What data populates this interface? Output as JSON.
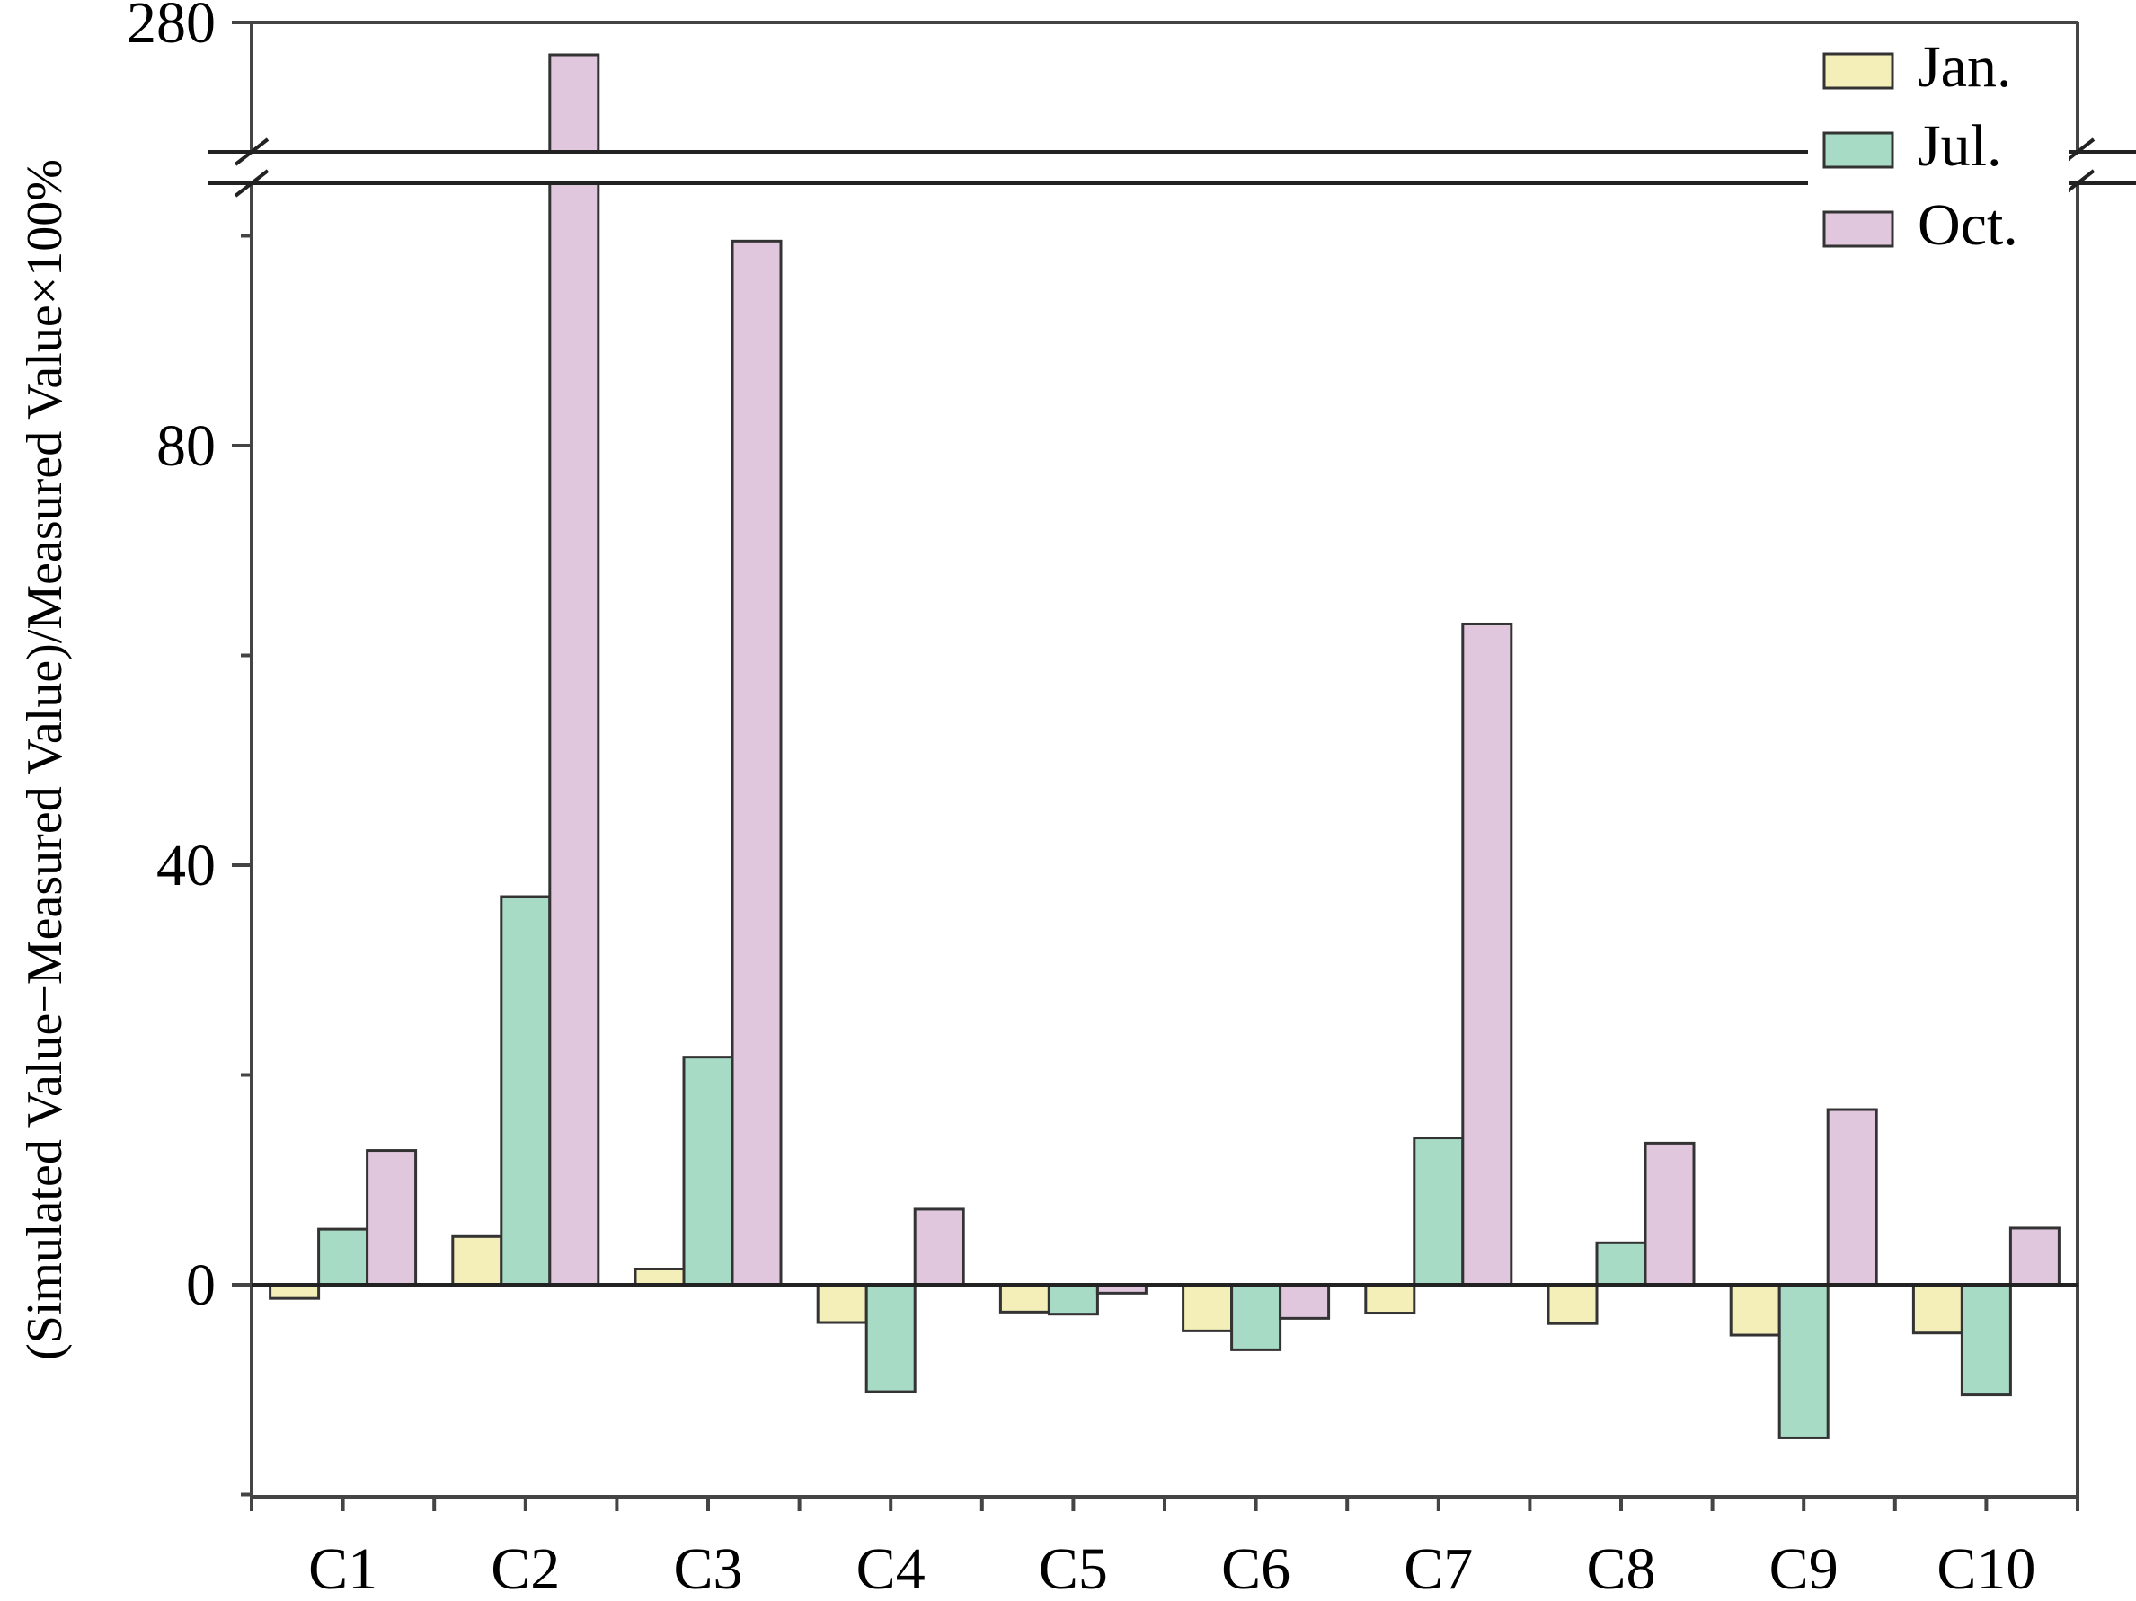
{
  "chart_data": {
    "type": "bar",
    "title": "",
    "xlabel": "",
    "ylabel": "(Simulated Value−Measured Value)/Measured Value×100%",
    "categories": [
      "C1",
      "C2",
      "C3",
      "C4",
      "C5",
      "C6",
      "C7",
      "C8",
      "C9",
      "C10"
    ],
    "series": [
      {
        "name": "Jan.",
        "color": "#f4efb8",
        "values": [
          -1.3,
          4.6,
          1.5,
          -3.6,
          -2.6,
          -4.4,
          -2.7,
          -3.7,
          -4.8,
          -4.6
        ]
      },
      {
        "name": "Jul.",
        "color": "#a8dbc6",
        "values": [
          5.3,
          37.0,
          21.7,
          -10.2,
          -2.8,
          -6.2,
          14.0,
          4.0,
          -14.6,
          -10.5
        ]
      },
      {
        "name": "Oct.",
        "color": "#e0c7de",
        "values": [
          12.8,
          275,
          99.5,
          7.2,
          -0.8,
          -3.2,
          63.0,
          13.5,
          16.7,
          5.4
        ]
      }
    ],
    "yticks": [
      "0",
      "40",
      "80",
      "280"
    ],
    "ylim": [
      -20,
      280
    ],
    "axis_break": {
      "lower_segment_top": 102,
      "upper_segment_bottom": 260
    },
    "legend_position": "top-right",
    "grid": false
  }
}
